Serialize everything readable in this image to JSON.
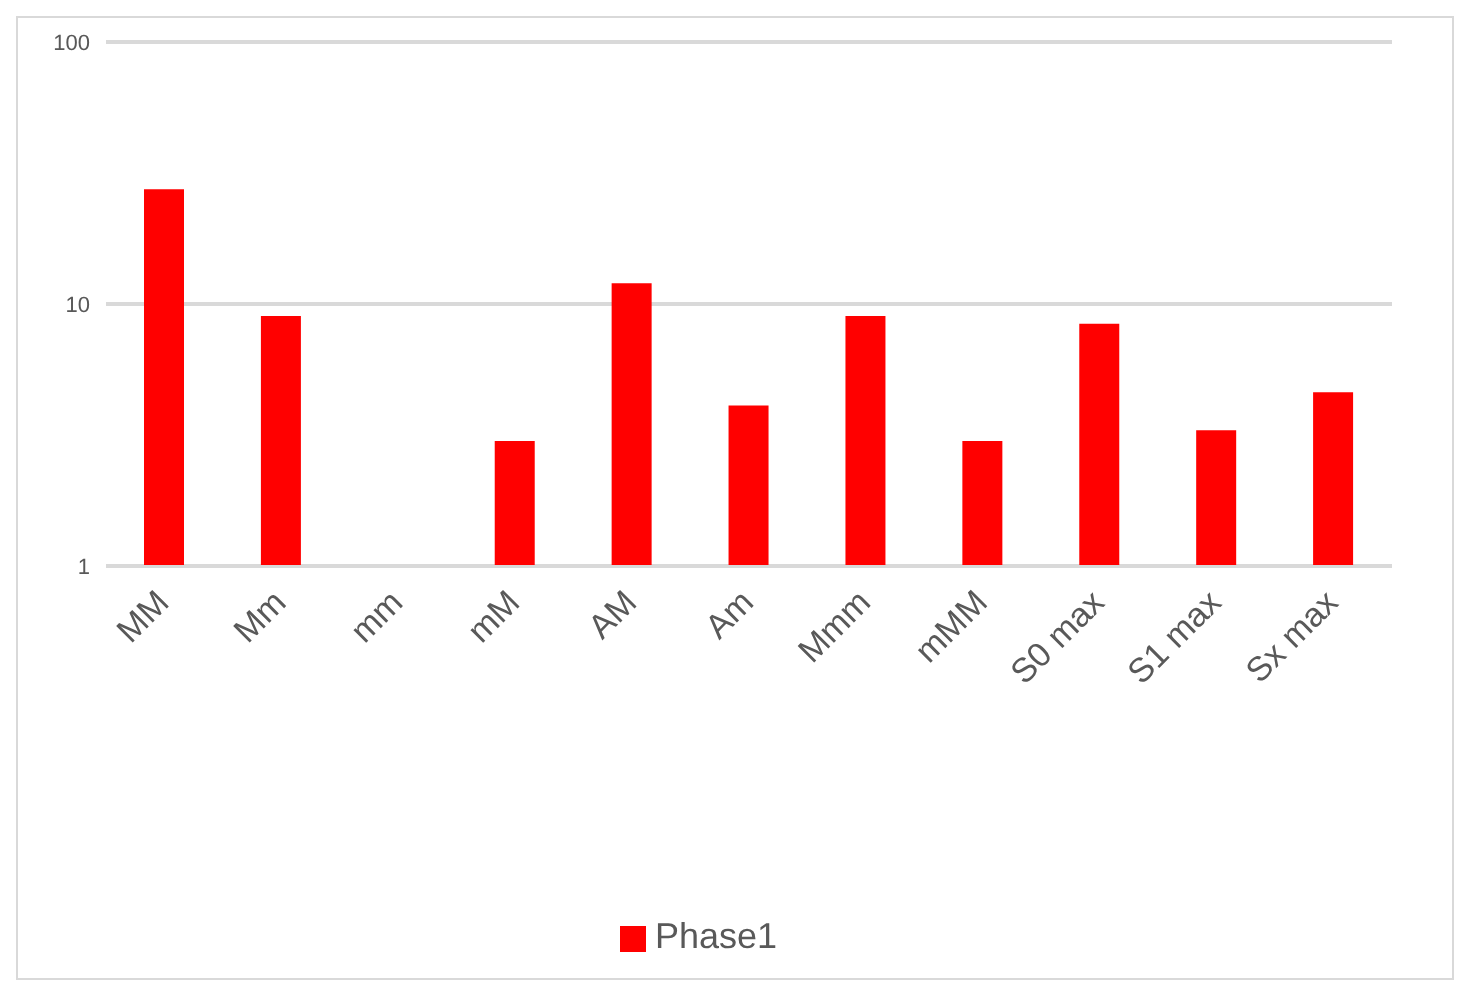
{
  "chart_data": {
    "type": "bar",
    "categories": [
      "MM",
      "Mm",
      "mm",
      "mM",
      "AM",
      "Am",
      "Mmm",
      "mMM",
      "S0 max",
      "S1 max",
      "Sx max"
    ],
    "series": [
      {
        "name": "Phase1",
        "color": "#ff0000",
        "values": [
          27.4,
          9.0,
          null,
          3.0,
          12.0,
          4.1,
          9.0,
          3.0,
          8.4,
          3.3,
          4.6
        ]
      }
    ],
    "log": "y",
    "ylim": [
      1,
      100
    ],
    "yticks": [
      1,
      10,
      100
    ],
    "grid": "y",
    "legend": "bottom"
  }
}
